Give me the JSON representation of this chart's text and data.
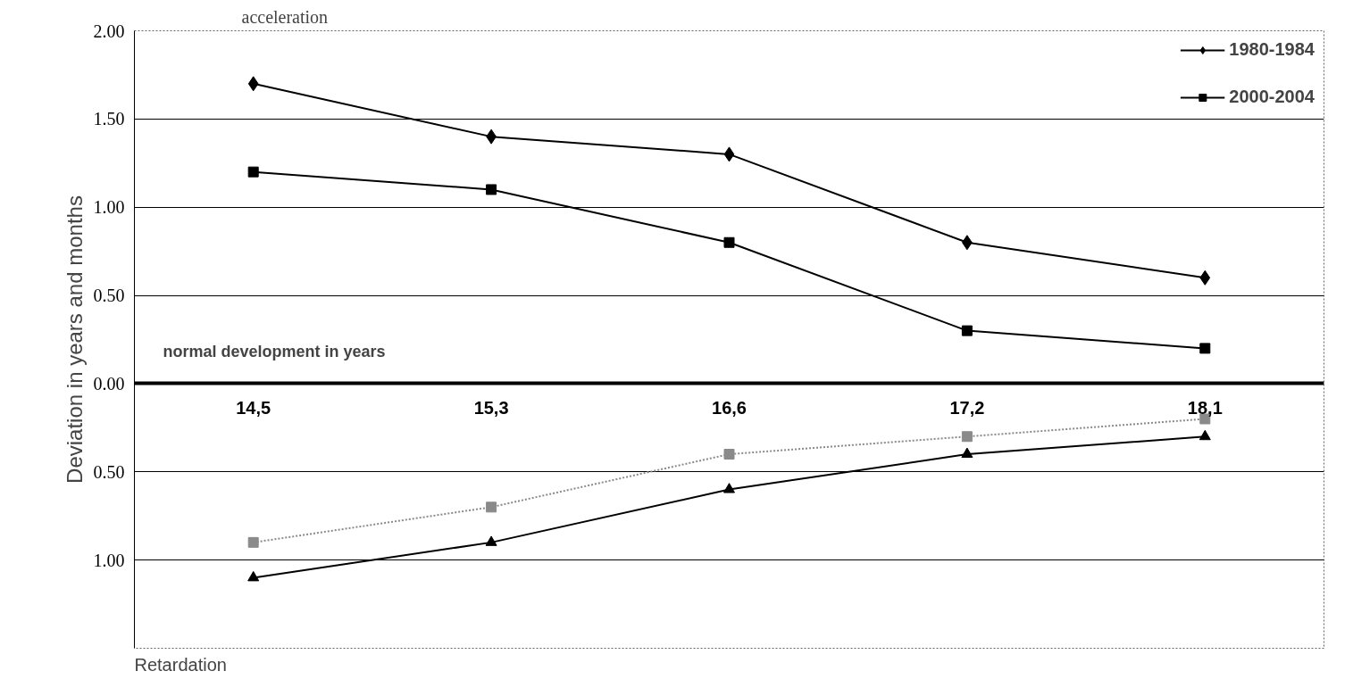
{
  "chart_data": {
    "type": "line",
    "ylabel": "Deviation in years and months",
    "annotations": [
      "acceleration",
      "normal development in years",
      "Retardation"
    ],
    "categories": [
      "14,5",
      "15,3",
      "16,6",
      "17,2",
      "18,1"
    ],
    "series": [
      {
        "name": "1980-1984",
        "color": "#000000",
        "marker": "diamond",
        "line_style": "solid",
        "values": [
          1.7,
          1.4,
          1.3,
          0.8,
          0.6
        ]
      },
      {
        "name": "2000-2004",
        "color": "#000000",
        "marker": "square",
        "line_style": "solid",
        "values": [
          1.2,
          1.1,
          0.8,
          0.3,
          0.2
        ]
      },
      {
        "color": "#8a8a8a",
        "marker": "square",
        "line_style": "dotted",
        "values": [
          -0.9,
          -0.7,
          -0.4,
          -0.3,
          -0.2
        ]
      },
      {
        "color": "#000000",
        "marker": "triangle",
        "line_style": "solid",
        "values": [
          -1.1,
          -0.9,
          -0.6,
          -0.4,
          -0.3
        ]
      }
    ],
    "ylim": [
      -1.5,
      2.0
    ],
    "yticks": [
      {
        "value": 2.0,
        "label": "2.00"
      },
      {
        "value": 1.5,
        "label": "1.50"
      },
      {
        "value": 1.0,
        "label": "1.00"
      },
      {
        "value": 0.5,
        "label": "0.50"
      },
      {
        "value": 0.0,
        "label": "0.00"
      },
      {
        "value": -0.5,
        "label": "0.50"
      },
      {
        "value": -1.0,
        "label": "1.00"
      }
    ],
    "grid": "y",
    "legend": "top right"
  }
}
